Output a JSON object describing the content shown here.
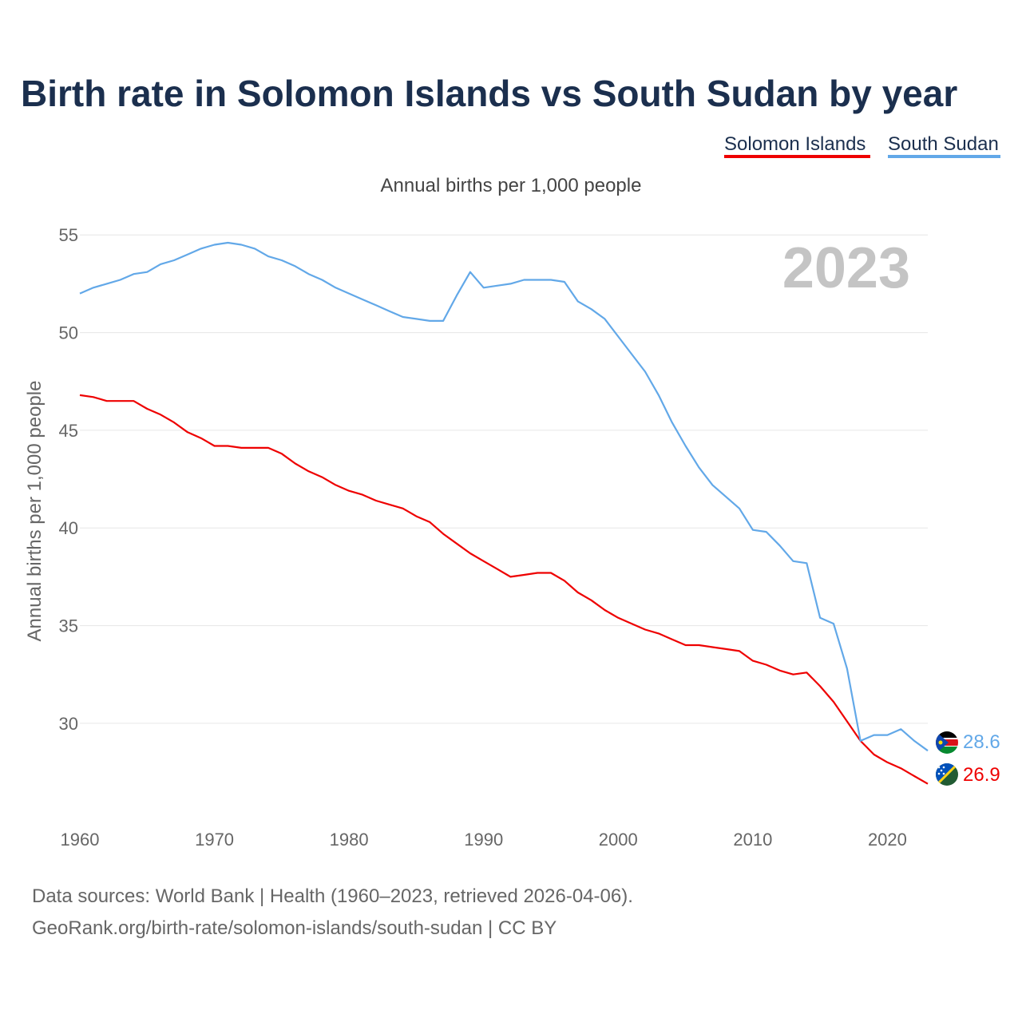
{
  "title": "Birth rate in Solomon Islands vs South Sudan by year",
  "legend": [
    {
      "name": "Solomon Islands",
      "color": "#ee0000"
    },
    {
      "name": "South Sudan",
      "color": "#62a8e8"
    }
  ],
  "year_watermark": "2023",
  "source_lines": [
    "Data sources: World Bank | Health (1960–2023, retrieved 2026-04-06).",
    "GeoRank.org/birth-rate/solomon-islands/south-sudan | CC BY"
  ],
  "chart_data": {
    "type": "line",
    "title": "Birth rate in Solomon Islands vs South Sudan by year",
    "subtitle": "Annual births per 1,000 people",
    "xlabel": "",
    "ylabel": "Annual births per 1,000 people",
    "xlim": [
      1960,
      2023
    ],
    "ylim": [
      25.5,
      55.5
    ],
    "x_ticks": [
      1960,
      1970,
      1980,
      1990,
      2000,
      2010,
      2020
    ],
    "y_ticks": [
      30,
      35,
      40,
      45,
      50,
      55
    ],
    "grid": true,
    "legend_position": "top-right",
    "x": [
      1960,
      1961,
      1962,
      1963,
      1964,
      1965,
      1966,
      1967,
      1968,
      1969,
      1970,
      1971,
      1972,
      1973,
      1974,
      1975,
      1976,
      1977,
      1978,
      1979,
      1980,
      1981,
      1982,
      1983,
      1984,
      1985,
      1986,
      1987,
      1988,
      1989,
      1990,
      1991,
      1992,
      1993,
      1994,
      1995,
      1996,
      1997,
      1998,
      1999,
      2000,
      2001,
      2002,
      2003,
      2004,
      2005,
      2006,
      2007,
      2008,
      2009,
      2010,
      2011,
      2012,
      2013,
      2014,
      2015,
      2016,
      2017,
      2018,
      2019,
      2020,
      2021,
      2022,
      2023
    ],
    "series": [
      {
        "name": "Solomon Islands",
        "color": "#ee0000",
        "end_label": "26.9",
        "values": [
          46.8,
          46.7,
          46.5,
          46.5,
          46.5,
          46.1,
          45.8,
          45.4,
          44.9,
          44.6,
          44.2,
          44.2,
          44.1,
          44.1,
          44.1,
          43.8,
          43.3,
          42.9,
          42.6,
          42.2,
          41.9,
          41.7,
          41.4,
          41.2,
          41.0,
          40.6,
          40.3,
          39.7,
          39.2,
          38.7,
          38.3,
          37.9,
          37.5,
          37.6,
          37.7,
          37.7,
          37.3,
          36.7,
          36.3,
          35.8,
          35.4,
          35.1,
          34.8,
          34.6,
          34.3,
          34.0,
          34.0,
          33.9,
          33.8,
          33.7,
          33.2,
          33.0,
          32.7,
          32.5,
          32.6,
          31.9,
          31.1,
          30.1,
          29.1,
          28.4,
          28.0,
          27.7,
          27.3,
          26.9
        ]
      },
      {
        "name": "South Sudan",
        "color": "#62a8e8",
        "end_label": "28.6",
        "values": [
          52.0,
          52.3,
          52.5,
          52.7,
          53.0,
          53.1,
          53.5,
          53.7,
          54.0,
          54.3,
          54.5,
          54.6,
          54.5,
          54.3,
          53.9,
          53.7,
          53.4,
          53.0,
          52.7,
          52.3,
          52.0,
          51.7,
          51.4,
          51.1,
          50.8,
          50.7,
          50.6,
          50.6,
          51.9,
          53.1,
          52.3,
          52.4,
          52.5,
          52.7,
          52.7,
          52.7,
          52.6,
          51.6,
          51.2,
          50.7,
          49.8,
          48.9,
          48.0,
          46.8,
          45.4,
          44.2,
          43.1,
          42.2,
          41.6,
          41.0,
          39.9,
          39.8,
          39.1,
          38.3,
          38.2,
          35.4,
          35.1,
          32.8,
          29.1,
          29.4,
          29.4,
          29.7,
          29.1,
          28.6
        ]
      }
    ]
  }
}
